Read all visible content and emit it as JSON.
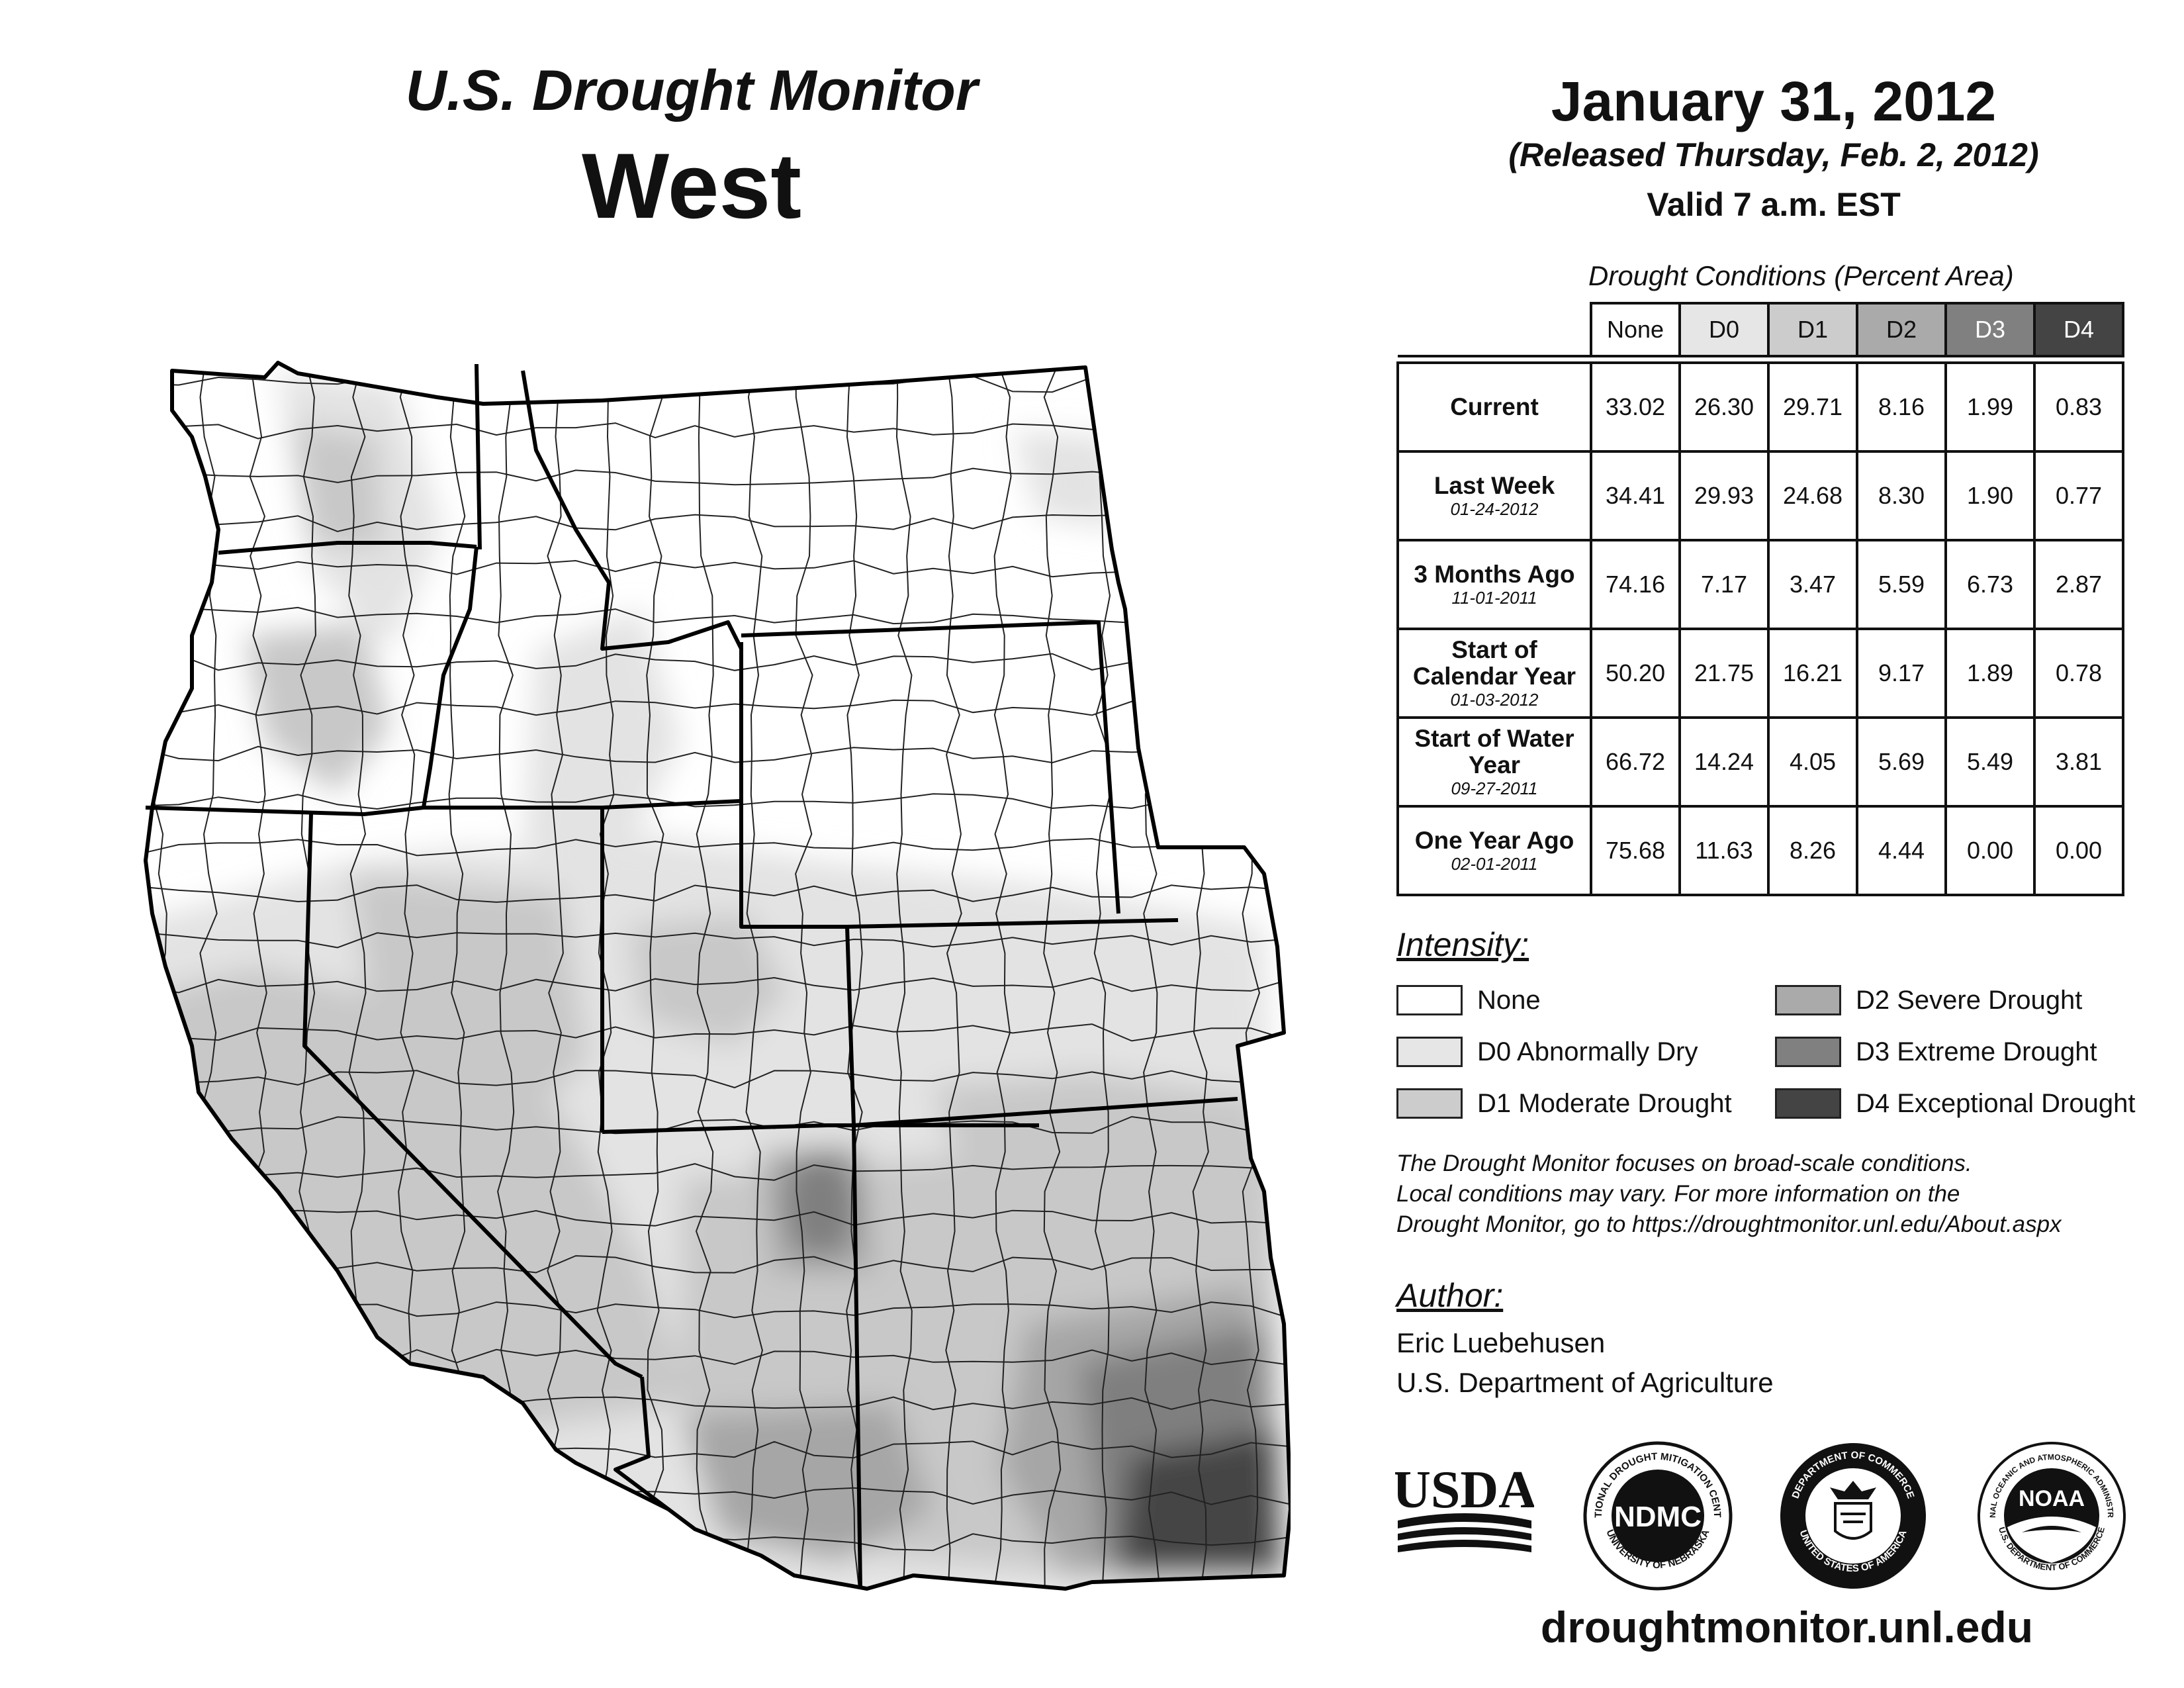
{
  "header": {
    "title": "U.S. Drought Monitor",
    "region": "West",
    "date": "January 31, 2012",
    "released": "(Released Thursday, Feb. 2, 2012)",
    "valid": "Valid 7 a.m. EST"
  },
  "table": {
    "caption": "Drought Conditions (Percent Area)",
    "columns": [
      "None",
      "D0",
      "D1",
      "D2",
      "D3",
      "D4"
    ],
    "column_colors": [
      "#ffffff",
      "#e6e6e6",
      "#cccccc",
      "#aaaaaa",
      "#808080",
      "#444444"
    ],
    "rows": [
      {
        "label": "Current",
        "date": "",
        "values": [
          "33.02",
          "26.30",
          "29.71",
          "8.16",
          "1.99",
          "0.83"
        ]
      },
      {
        "label": "Last Week",
        "date": "01-24-2012",
        "values": [
          "34.41",
          "29.93",
          "24.68",
          "8.30",
          "1.90",
          "0.77"
        ]
      },
      {
        "label": "3 Months Ago",
        "date": "11-01-2011",
        "values": [
          "74.16",
          "7.17",
          "3.47",
          "5.59",
          "6.73",
          "2.87"
        ]
      },
      {
        "label": "Start of Calendar Year",
        "date": "01-03-2012",
        "values": [
          "50.20",
          "21.75",
          "16.21",
          "9.17",
          "1.89",
          "0.78"
        ]
      },
      {
        "label": "Start of Water Year",
        "date": "09-27-2011",
        "values": [
          "66.72",
          "14.24",
          "4.05",
          "5.69",
          "5.49",
          "3.81"
        ]
      },
      {
        "label": "One Year Ago",
        "date": "02-01-2011",
        "values": [
          "75.68",
          "11.63",
          "8.26",
          "4.44",
          "0.00",
          "0.00"
        ]
      }
    ]
  },
  "legend": {
    "heading": "Intensity:",
    "items": [
      {
        "label": "None",
        "color": "#ffffff"
      },
      {
        "label": "D0 Abnormally Dry",
        "color": "#e6e6e6"
      },
      {
        "label": "D1 Moderate Drought",
        "color": "#cccccc"
      },
      {
        "label": "D2 Severe Drought",
        "color": "#aaaaaa"
      },
      {
        "label": "D3 Extreme Drought",
        "color": "#808080"
      },
      {
        "label": "D4 Exceptional Drought",
        "color": "#444444"
      }
    ]
  },
  "disclaimer": [
    "The Drought Monitor focuses on broad-scale conditions.",
    "Local conditions may vary. For more information on the",
    "Drought Monitor, go to https://droughtmonitor.unl.edu/About.aspx"
  ],
  "author": {
    "heading": "Author:",
    "name": "Eric Luebehusen",
    "organization": "U.S. Department of Agriculture"
  },
  "logos": {
    "usda": "USDA",
    "ndmc": "NDMC",
    "ndmc_ring_top": "NATIONAL DROUGHT MITIGATION CENTER",
    "ndmc_ring_bottom": "UNIVERSITY OF NEBRASKA",
    "commerce_ring_top": "DEPARTMENT OF COMMERCE",
    "commerce_ring_bottom": "UNITED STATES OF AMERICA",
    "noaa": "NOAA",
    "noaa_ring_top": "NATIONAL OCEANIC AND ATMOSPHERIC ADMINISTRATION",
    "noaa_ring_bottom": "U.S. DEPARTMENT OF COMMERCE"
  },
  "website": "droughtmonitor.unl.edu"
}
